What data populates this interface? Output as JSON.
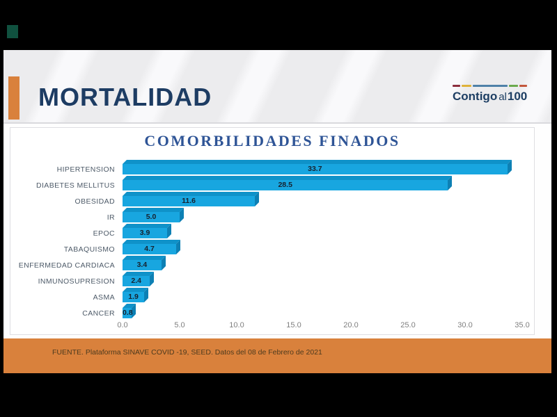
{
  "slide": {
    "header": {
      "title": "MORTALIDAD",
      "title_color": "#1d3c63",
      "accent_color": "#d9813c",
      "logo": {
        "word_main": "Contigo",
        "word_mid": "al",
        "word_num": "100",
        "text_color": "#1d3e63",
        "bar_segment_colors": [
          "#8c2e3d",
          "#dfb23a",
          "#4e81a8",
          "#6aa94c",
          "#c2563b"
        ]
      }
    },
    "footer": {
      "text": "FUENTE. Plataforma SINAVE COVID -19, SEED. Datos del 08 de Febrero de 2021",
      "band_color": "#d9813c",
      "text_color": "#4c3a1e"
    },
    "corner_mark_color": "#10513f"
  },
  "chart_data": {
    "type": "bar",
    "orientation": "horizontal",
    "title": "COMORBILIDADES FINADOS",
    "title_color": "#2e5496",
    "categories": [
      "HIPERTENSION",
      "DIABETES MELLITUS",
      "OBESIDAD",
      "IR",
      "EPOC",
      "TABAQUISMO",
      "ENFERMEDAD CARDIACA",
      "INMUNOSUPRESION",
      "ASMA",
      "CANCER"
    ],
    "values": [
      33.7,
      28.5,
      11.6,
      5.0,
      3.9,
      4.7,
      3.4,
      2.4,
      1.9,
      0.8
    ],
    "value_labels": [
      "33.7",
      "28.5",
      "11.6",
      "5.0",
      "3.9",
      "4.7",
      "3.4",
      "2.4",
      "1.9",
      "0.8"
    ],
    "xlabel": "",
    "ylabel": "",
    "xlim": [
      0,
      35
    ],
    "x_ticks": [
      "0.0",
      "5.0",
      "10.0",
      "15.0",
      "20.0",
      "25.0",
      "30.0",
      "35.0"
    ],
    "bar_color": "#18a6e0",
    "bar_top_color": "#0f92c9",
    "bar_side_color": "#0d80b4",
    "grid": false,
    "legend": false,
    "data_labels_inside": true
  }
}
